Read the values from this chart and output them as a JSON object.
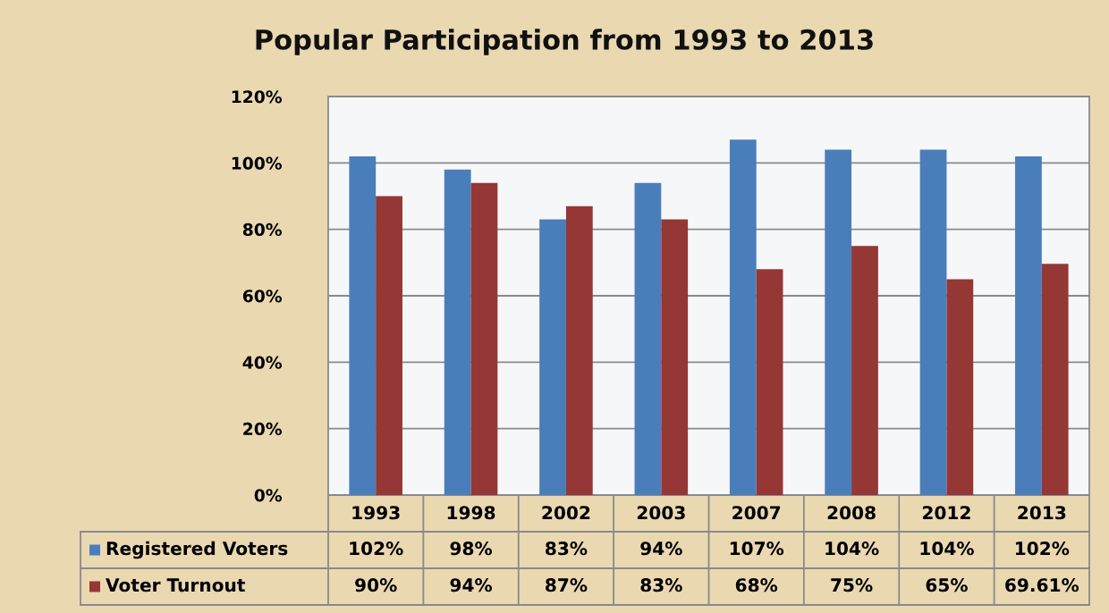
{
  "chart_data": {
    "type": "bar",
    "title": "Popular Participation from 1993 to 2013",
    "categories": [
      "1993",
      "1998",
      "2002",
      "2003",
      "2007",
      "2008",
      "2012",
      "2013"
    ],
    "series": [
      {
        "name": "Registered Voters",
        "color": "#4a7ebb",
        "values": [
          102,
          98,
          83,
          94,
          107,
          104,
          104,
          102
        ],
        "value_labels": [
          "102%",
          "98%",
          "83%",
          "94%",
          "107%",
          "104%",
          "104%",
          "102%"
        ]
      },
      {
        "name": "Voter Turnout",
        "color": "#953735",
        "values": [
          90,
          94,
          87,
          83,
          68,
          75,
          65,
          69.61
        ],
        "value_labels": [
          "90%",
          "94%",
          "87%",
          "83%",
          "68%",
          "75%",
          "65%",
          "69.61%"
        ]
      }
    ],
    "ylim": [
      0,
      120
    ],
    "yticks": [
      {
        "value": 0,
        "label": "0%"
      },
      {
        "value": 20,
        "label": "20%"
      },
      {
        "value": 40,
        "label": "40%"
      },
      {
        "value": 60,
        "label": "60%"
      },
      {
        "value": 80,
        "label": "80%"
      },
      {
        "value": 100,
        "label": "100%"
      },
      {
        "value": 120,
        "label": "120%"
      }
    ],
    "grid": "y",
    "legend": "bottom"
  }
}
